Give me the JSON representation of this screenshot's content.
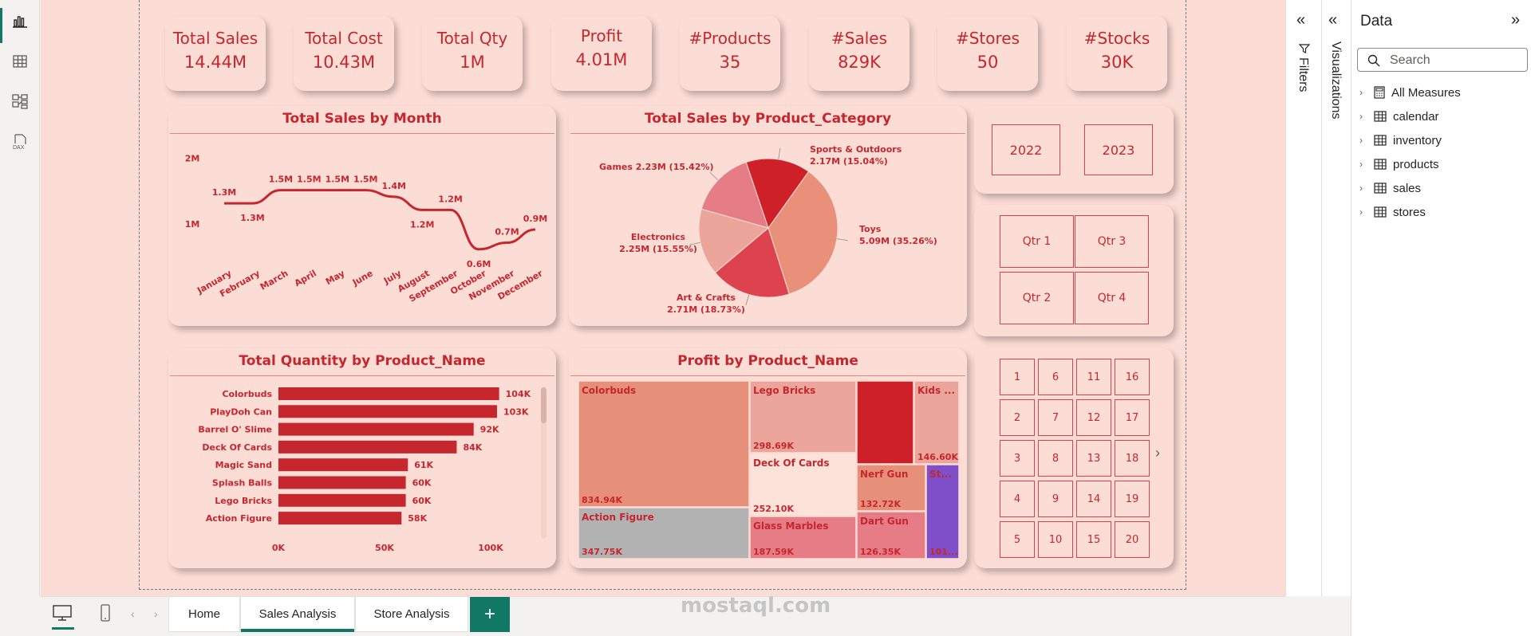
{
  "kpis": [
    {
      "label": "Total Sales",
      "value": "14.44M"
    },
    {
      "label": "Total Cost",
      "value": "10.43M"
    },
    {
      "label": "Total Qty",
      "value": "1M"
    },
    {
      "label": "Profit",
      "value": "4.01M"
    },
    {
      "label": "#Products",
      "value": "35"
    },
    {
      "label": "#Sales",
      "value": "829K"
    },
    {
      "label": "#Stores",
      "value": "50"
    },
    {
      "label": "#Stocks",
      "value": "30K"
    }
  ],
  "colors": {
    "accent": "#c6262e",
    "canvas": "#fcddd5",
    "brand": "#117865"
  },
  "charts": {
    "line": {
      "title": "Total Sales by Month"
    },
    "pie": {
      "title": "Total Sales by Product_Category"
    },
    "bar": {
      "title": "Total Quantity by Product_Name"
    },
    "treemap": {
      "title": "Profit by Product_Name"
    }
  },
  "chart_data": [
    {
      "type": "line",
      "title": "Total Sales by Month",
      "x": [
        "January",
        "February",
        "March",
        "April",
        "May",
        "June",
        "July",
        "August",
        "September",
        "October",
        "November",
        "December"
      ],
      "values": [
        1.3,
        1.3,
        1.5,
        1.5,
        1.5,
        1.5,
        1.4,
        1.2,
        1.2,
        0.6,
        0.7,
        0.9
      ],
      "value_labels": [
        "1.3M",
        "1.3M",
        "1.5M",
        "1.5M",
        "1.5M",
        "1.5M",
        "1.4M",
        "1.2M",
        "1.2M",
        "0.6M",
        "0.7M",
        "0.9M"
      ],
      "y_ticks": [
        "2M",
        "1M"
      ],
      "ylim": [
        0.5,
        2.2
      ]
    },
    {
      "type": "pie",
      "title": "Total Sales by Product_Category",
      "slices": [
        {
          "name": "Toys",
          "value": 35.26,
          "label": "Toys",
          "label2": "5.09M (35.26%)",
          "color": "#e8907a"
        },
        {
          "name": "Art & Crafts",
          "value": 18.73,
          "label": "Art & Crafts",
          "label2": "2.71M (18.73%)",
          "color": "#dc434e"
        },
        {
          "name": "Electronics",
          "value": 15.55,
          "label": "Electronics",
          "label2": "2.25M (15.55%)",
          "color": "#eba59b"
        },
        {
          "name": "Games",
          "value": 15.42,
          "label": "Games 2.23M (15.42%)",
          "label2": "",
          "color": "#e57c86"
        },
        {
          "name": "Sports & Outdoors",
          "value": 15.04,
          "label": "Sports & Outdoors",
          "label2": "2.17M (15.04%)",
          "color": "#cd2029"
        }
      ]
    },
    {
      "type": "bar",
      "title": "Total Quantity by Product_Name",
      "categories": [
        "Colorbuds",
        "PlayDoh Can",
        "Barrel O' Slime",
        "Deck Of Cards",
        "Magic Sand",
        "Splash Balls",
        "Lego Bricks",
        "Action Figure"
      ],
      "values": [
        104,
        103,
        92,
        84,
        61,
        60,
        60,
        58
      ],
      "value_labels": [
        "104K",
        "103K",
        "92K",
        "84K",
        "61K",
        "60K",
        "60K",
        "58K"
      ],
      "x_ticks": [
        "0K",
        "50K",
        "100K"
      ],
      "xlim": [
        0,
        100
      ]
    },
    {
      "type": "treemap",
      "title": "Profit by Product_Name",
      "tiles": [
        {
          "name": "Colorbuds",
          "value": "834.94K",
          "color": "#e6907a"
        },
        {
          "name": "Action Figure",
          "value": "347.75K",
          "color": "#b2b2b2"
        },
        {
          "name": "Lego Bricks",
          "value": "298.69K",
          "color": "#eba59b"
        },
        {
          "name": "Deck Of Cards",
          "value": "252.10K",
          "color": "#fde2da"
        },
        {
          "name": "Glass Marbles",
          "value": "187.59K",
          "color": "#e57c86"
        },
        {
          "name": "",
          "value": "",
          "color": "#cd2029"
        },
        {
          "name": "Kids ...",
          "value": "146.60K",
          "color": "#eba59b"
        },
        {
          "name": "Nerf Gun",
          "value": "132.72K",
          "color": "#e6907a"
        },
        {
          "name": "Dart Gun",
          "value": "126.35K",
          "color": "#e57c86"
        },
        {
          "name": "St...",
          "value": "101...",
          "color": "#7f4fc9"
        }
      ]
    }
  ],
  "slicers": {
    "years": [
      "2022",
      "2023"
    ],
    "quarters": [
      "Qtr 1",
      "Qtr 3",
      "Qtr 2",
      "Qtr 4"
    ],
    "days": [
      "1",
      "6",
      "11",
      "16",
      "2",
      "7",
      "12",
      "17",
      "3",
      "8",
      "13",
      "18",
      "4",
      "9",
      "14",
      "19",
      "5",
      "10",
      "15",
      "20"
    ]
  },
  "panes": {
    "filters_label": "Filters",
    "visualizations_label": "Visualizations",
    "data_title": "Data",
    "search_placeholder": "Search",
    "tree": [
      "All Measures",
      "calendar",
      "inventory",
      "products",
      "sales",
      "stores"
    ]
  },
  "tabs": [
    "Home",
    "Sales Analysis",
    "Store Analysis"
  ],
  "add_tab_label": "+",
  "watermark": "mostaql.com"
}
